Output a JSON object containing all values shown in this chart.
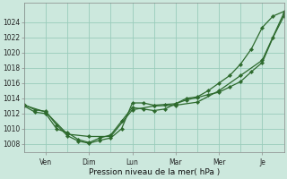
{
  "title": "",
  "xlabel": "Pression niveau de la mer( hPa )",
  "ylabel": "",
  "background_color": "#cce8dd",
  "grid_color": "#99ccbb",
  "line_color": "#2d6a2d",
  "ylim": [
    1007,
    1026.5
  ],
  "yticks": [
    1008,
    1010,
    1012,
    1014,
    1016,
    1018,
    1020,
    1022,
    1024
  ],
  "xtick_positions": [
    1,
    3,
    5,
    7,
    9,
    11
  ],
  "xtick_labels": [
    "Ven",
    "Dim",
    "Lun",
    "Mar",
    "Mer",
    "Je"
  ],
  "xlim": [
    0,
    12
  ],
  "series1_x": [
    0.0,
    0.5,
    1.0,
    1.5,
    2.0,
    2.5,
    3.0,
    3.5,
    4.0,
    4.5,
    5.0,
    5.5,
    6.0,
    6.5,
    7.0,
    7.5,
    8.0,
    8.5,
    9.0,
    9.5,
    10.0,
    10.5,
    11.0,
    11.5,
    12.0
  ],
  "series1_y": [
    1013.2,
    1012.5,
    1012.3,
    1010.5,
    1009.1,
    1008.4,
    1008.1,
    1008.5,
    1008.8,
    1010.0,
    1013.4,
    1013.4,
    1013.1,
    1013.2,
    1013.3,
    1014.0,
    1014.2,
    1015.0,
    1016.0,
    1017.0,
    1018.5,
    1020.5,
    1023.3,
    1024.8,
    1025.4
  ],
  "series2_x": [
    0.0,
    0.5,
    1.0,
    1.5,
    2.0,
    2.5,
    3.0,
    3.5,
    4.0,
    4.5,
    5.0,
    5.5,
    6.0,
    6.5,
    7.0,
    7.5,
    8.0,
    8.5,
    9.0,
    9.5,
    10.0,
    10.5,
    11.0,
    11.5,
    12.0
  ],
  "series2_y": [
    1013.0,
    1012.2,
    1012.0,
    1010.0,
    1009.5,
    1008.6,
    1008.2,
    1008.8,
    1009.2,
    1011.0,
    1012.8,
    1012.6,
    1012.4,
    1012.6,
    1013.3,
    1013.8,
    1014.1,
    1014.5,
    1014.8,
    1015.5,
    1016.2,
    1017.5,
    1018.7,
    1022.0,
    1024.8
  ],
  "series3_x": [
    0.0,
    1.0,
    2.0,
    3.0,
    4.0,
    5.0,
    6.0,
    7.0,
    8.0,
    9.0,
    10.0,
    11.0,
    12.0
  ],
  "series3_y": [
    1013.1,
    1012.2,
    1009.3,
    1009.0,
    1009.0,
    1012.5,
    1013.0,
    1013.1,
    1013.5,
    1015.0,
    1017.0,
    1019.0,
    1025.2
  ],
  "figsize": [
    3.2,
    2.0
  ],
  "dpi": 100
}
